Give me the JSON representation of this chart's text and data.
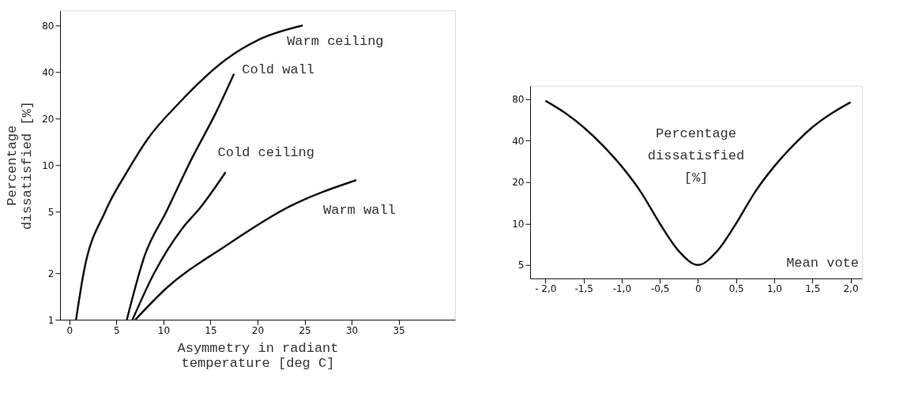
{
  "chart_data": [
    {
      "type": "line",
      "xlabel": "Asymmetry in radiant\ntemperature [deg C]",
      "ylabel": "Percentage\ndissatisfied [%]",
      "log": "y",
      "xlim": [
        -1,
        41
      ],
      "xticks": [
        0,
        5,
        10,
        15,
        20,
        25,
        30,
        35
      ],
      "ylim": [
        1,
        100
      ],
      "yticks": [
        1,
        2,
        5,
        10,
        20,
        40,
        80
      ],
      "grid": false,
      "legend": false,
      "line_style": "solid",
      "marker": "none",
      "series": [
        {
          "name": "Warm ceiling",
          "color": "#111111",
          "x": [
            0.7,
            1.5,
            3.8,
            6.1,
            8.4,
            11.6,
            16.6,
            20.2,
            24.8
          ],
          "values": [
            1,
            2,
            5,
            9,
            15,
            25,
            48,
            65,
            80
          ]
        },
        {
          "name": "Cold wall",
          "color": "#111111",
          "x": [
            6.1,
            8,
            10.3,
            13,
            15.6,
            17.5
          ],
          "values": [
            1,
            2.6,
            5,
            11,
            22,
            39
          ]
        },
        {
          "name": "Cold ceiling",
          "color": "#111111",
          "x": [
            6.7,
            9,
            12,
            13.9,
            16.6
          ],
          "values": [
            1,
            2,
            3.9,
            5.3,
            9
          ]
        },
        {
          "name": "Warm wall",
          "color": "#111111",
          "x": [
            7,
            10.3,
            16.6,
            23.4,
            30.5
          ],
          "values": [
            1,
            1.6,
            3,
            5.4,
            8
          ]
        }
      ]
    },
    {
      "type": "line",
      "xlabel": "Mean vote",
      "ylabel": "Percentage dissatisfied [%]",
      "log": "y",
      "xlim": [
        -2.2,
        2.15
      ],
      "xticks": [
        {
          "value": -2,
          "label": "- 2,0"
        },
        {
          "value": -1.5,
          "label": "-1,5"
        },
        {
          "value": -1,
          "label": "-1,0"
        },
        {
          "value": -0.5,
          "label": "-0,5"
        },
        0,
        {
          "value": 0.5,
          "label": "0,5"
        },
        {
          "value": 1,
          "label": "1,0"
        },
        {
          "value": 1.5,
          "label": "1,5"
        },
        {
          "value": 2,
          "label": "2,0"
        }
      ],
      "ylim": [
        4,
        100
      ],
      "yticks": [
        5,
        10,
        20,
        40,
        80
      ],
      "grid": false,
      "legend": false,
      "line_style": "solid",
      "marker": "none",
      "series": [
        {
          "color": "#111111",
          "x": [
            -2,
            -1.75,
            -1.5,
            -1.25,
            -1,
            -0.75,
            -0.5,
            -0.25,
            0,
            0.25,
            0.5,
            0.75,
            1,
            1.25,
            1.5,
            1.75,
            2
          ],
          "values": [
            78,
            64,
            50,
            37,
            26,
            17,
            10,
            6.3,
            5,
            6.3,
            10,
            17,
            26,
            37,
            50,
            63,
            76
          ]
        }
      ]
    }
  ]
}
